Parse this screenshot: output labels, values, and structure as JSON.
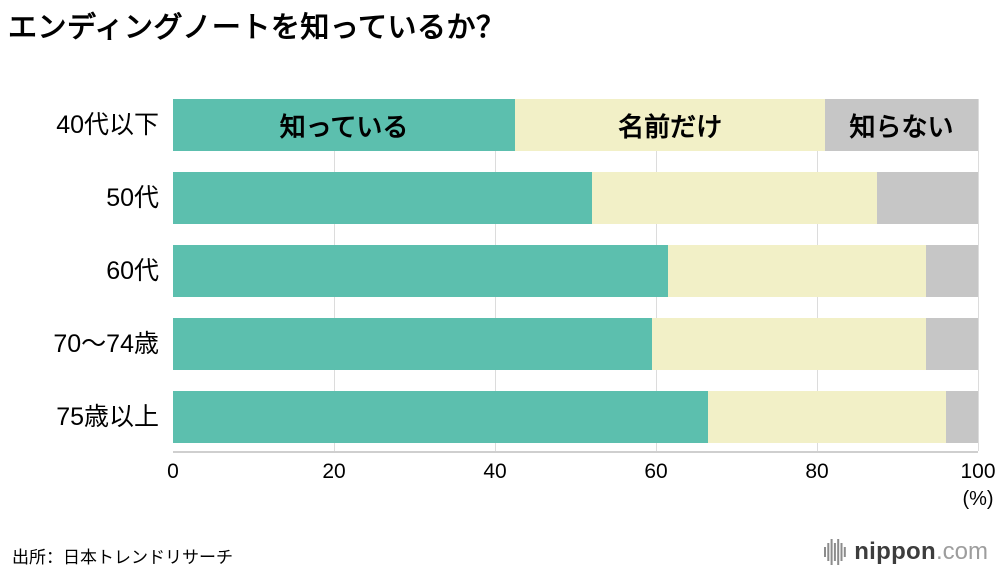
{
  "title": "エンディングノートを知っているか？",
  "source": "出所：日本トレンドリサーチ",
  "logo": {
    "brand": "nippon",
    "tld": ".com"
  },
  "colors": {
    "know": "#5cbfae",
    "name_only": "#f2f0c7",
    "not_know": "#c6c6c6",
    "grid": "#dcdcdc",
    "axis": "#cfcfcf"
  },
  "chart_data": {
    "type": "bar",
    "orientation": "horizontal",
    "stacked": true,
    "title": "エンディングノートを知っているか？",
    "categories": [
      "40代以下",
      "50代",
      "60代",
      "70〜74歳",
      "75歳以上"
    ],
    "series": [
      {
        "name": "知っている",
        "color": "#5cbfae",
        "values": [
          42.5,
          52,
          61.5,
          59.5,
          66.5
        ]
      },
      {
        "name": "名前だけ",
        "color": "#f2f0c7",
        "values": [
          38.5,
          35.5,
          32,
          34,
          29.5
        ]
      },
      {
        "name": "知らない",
        "color": "#c6c6c6",
        "values": [
          19,
          12.5,
          6.5,
          6.5,
          4
        ]
      }
    ],
    "xlabel": "(%)",
    "xlim": [
      0,
      100
    ],
    "xticks": [
      0,
      20,
      40,
      60,
      80,
      100
    ],
    "grid": true,
    "legend": "labels-inside-first-bar"
  }
}
